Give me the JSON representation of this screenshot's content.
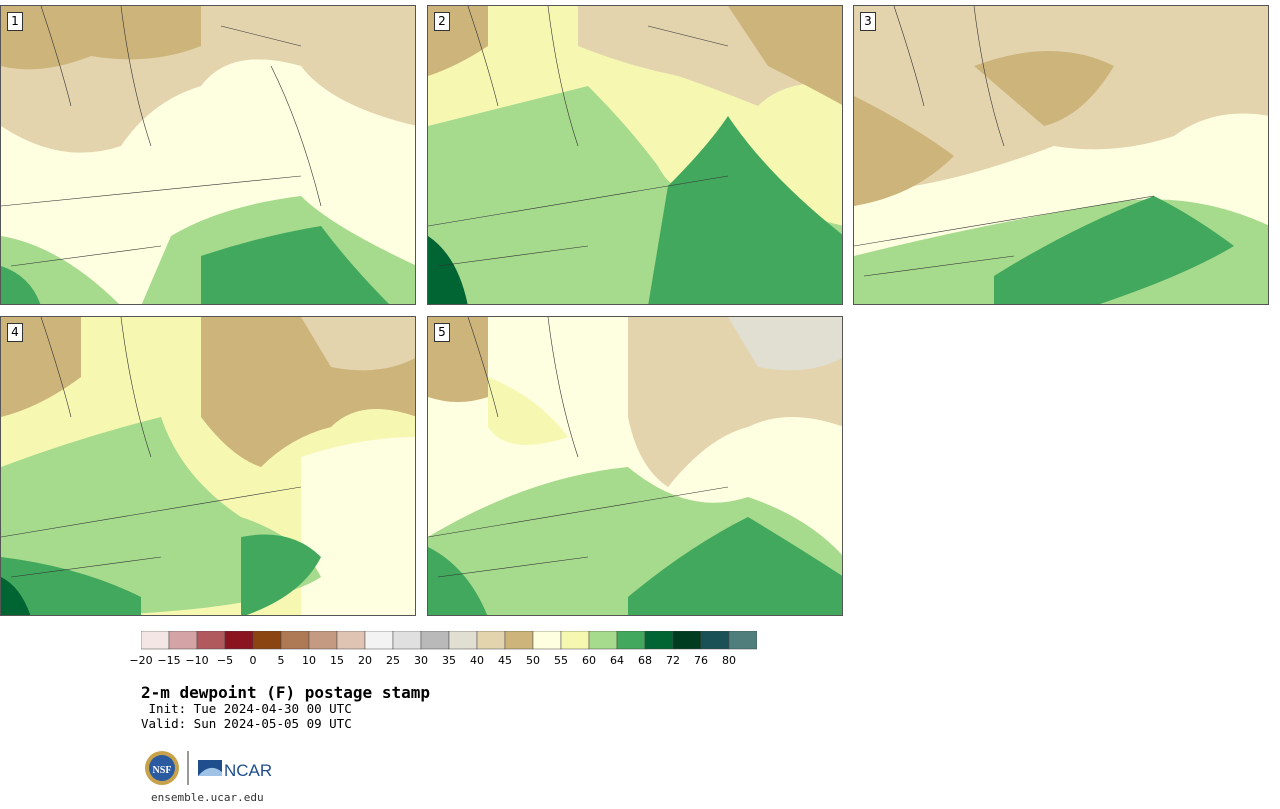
{
  "title": "2-m dewpoint (F) postage stamp",
  "init": " Init: Tue 2024-04-30 00 UTC",
  "valid": "Valid: Sun 2024-05-05 09 UTC",
  "site": "ensemble.ucar.edu",
  "logos": {
    "nsf": "NSF",
    "ncar": "NCAR"
  },
  "panels": [
    {
      "label": "1"
    },
    {
      "label": "2"
    },
    {
      "label": "3"
    },
    {
      "label": "4"
    },
    {
      "label": "5"
    }
  ],
  "colorbar": {
    "colors": [
      "#f5e6e6",
      "#d4a3a6",
      "#b15a5e",
      "#8a1520",
      "#8b4513",
      "#ad7a55",
      "#c49a82",
      "#dfc4b4",
      "#f3f3f3",
      "#e0e0e0",
      "#b9b9b9",
      "#e0dfd2",
      "#e3d4ae",
      "#cdb47b",
      "#fefee0",
      "#f6f8b2",
      "#a6da8c",
      "#41a85d",
      "#006433",
      "#003c20",
      "#1a5156",
      "#4f7e7c"
    ],
    "ticks": [
      "−20",
      "−15",
      "−10",
      "−5",
      "0",
      "5",
      "10",
      "15",
      "20",
      "25",
      "30",
      "35",
      "40",
      "45",
      "50",
      "55",
      "60",
      "64",
      "68",
      "72",
      "76",
      "80"
    ]
  }
}
